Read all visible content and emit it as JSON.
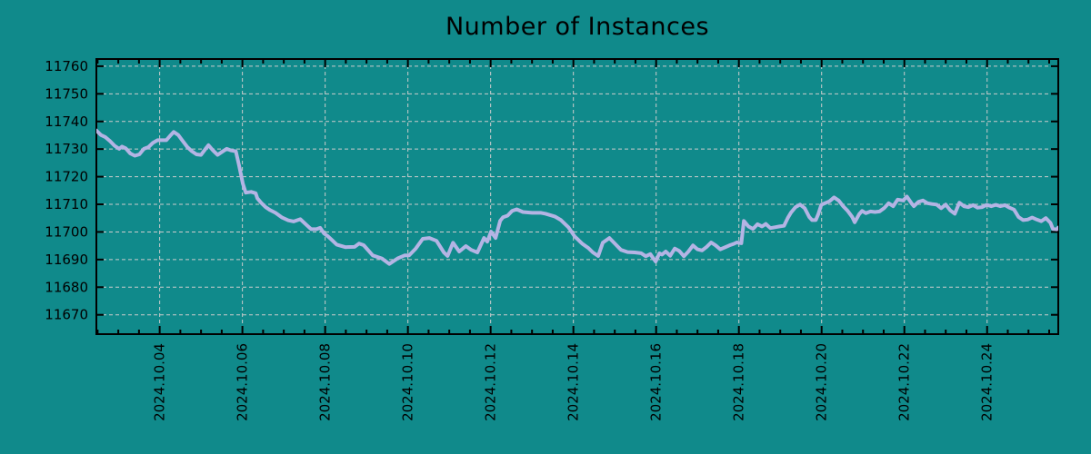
{
  "page": {
    "background_color": "#108a8b",
    "accent_line_color": "#b4b4e4",
    "grid_color": "#cccccc",
    "axis_color": "#000000",
    "text_color": "#000000"
  },
  "chart_data": {
    "type": "line",
    "title": "Number of Instances",
    "xlabel": "",
    "ylabel": "",
    "legend_position": "none",
    "grid": {
      "show": true,
      "style": "dashed"
    },
    "y_axis": {
      "range": [
        11663,
        11762.6
      ],
      "tick_values": [
        11670,
        11680,
        11690,
        11700,
        11710,
        11720,
        11730,
        11740,
        11750,
        11760
      ],
      "tick_labels": [
        "11670",
        "11680",
        "11690",
        "11700",
        "11710",
        "11720",
        "11730",
        "11740",
        "11750",
        "11760"
      ]
    },
    "x_axis": {
      "range_days": [
        2.47,
        25.72
      ],
      "tick_days": [
        4,
        6,
        8,
        10,
        12,
        14,
        16,
        18,
        20,
        22,
        24
      ],
      "tick_labels": [
        "2024.10.04",
        "2024.10.06",
        "2024.10.08",
        "2024.10.10",
        "2024.10.12",
        "2024.10.14",
        "2024.10.16",
        "2024.10.18",
        "2024.10.20",
        "2024.10.22",
        "2024.10.24"
      ],
      "minor_tick_step_days": 0.5,
      "label_rotation_deg": -90
    },
    "series": [
      {
        "name": "instances",
        "color": "#b4b4e4",
        "points": [
          [
            2.47,
            11736.7
          ],
          [
            2.58,
            11735.1
          ],
          [
            2.69,
            11734.3
          ],
          [
            2.8,
            11732.9
          ],
          [
            2.91,
            11731.2
          ],
          [
            3.02,
            11730.1
          ],
          [
            3.09,
            11730.9
          ],
          [
            3.18,
            11730.3
          ],
          [
            3.29,
            11728.4
          ],
          [
            3.4,
            11727.6
          ],
          [
            3.51,
            11728.1
          ],
          [
            3.62,
            11730.1
          ],
          [
            3.73,
            11730.7
          ],
          [
            3.84,
            11732.3
          ],
          [
            3.95,
            11733.2
          ],
          [
            4.16,
            11733.2
          ],
          [
            4.27,
            11735.1
          ],
          [
            4.34,
            11736.2
          ],
          [
            4.45,
            11735.1
          ],
          [
            4.56,
            11732.9
          ],
          [
            4.67,
            11730.7
          ],
          [
            4.78,
            11729.2
          ],
          [
            4.89,
            11728.1
          ],
          [
            5.0,
            11727.9
          ],
          [
            5.11,
            11730.1
          ],
          [
            5.18,
            11731.4
          ],
          [
            5.29,
            11729.5
          ],
          [
            5.4,
            11727.9
          ],
          [
            5.51,
            11729.0
          ],
          [
            5.62,
            11730.1
          ],
          [
            5.73,
            11729.5
          ],
          [
            5.84,
            11729.2
          ],
          [
            5.92,
            11724.0
          ],
          [
            6.01,
            11717.5
          ],
          [
            6.08,
            11714.2
          ],
          [
            6.21,
            11714.5
          ],
          [
            6.32,
            11714.0
          ],
          [
            6.36,
            11712.2
          ],
          [
            6.45,
            11710.6
          ],
          [
            6.56,
            11709.0
          ],
          [
            6.67,
            11707.9
          ],
          [
            6.8,
            11706.9
          ],
          [
            6.96,
            11705.2
          ],
          [
            7.11,
            11704.2
          ],
          [
            7.24,
            11703.8
          ],
          [
            7.4,
            11704.6
          ],
          [
            7.55,
            11702.5
          ],
          [
            7.66,
            11701.0
          ],
          [
            7.79,
            11701.0
          ],
          [
            7.88,
            11701.5
          ],
          [
            7.97,
            11699.5
          ],
          [
            8.06,
            11698.5
          ],
          [
            8.17,
            11697.0
          ],
          [
            8.28,
            11695.4
          ],
          [
            8.49,
            11694.5
          ],
          [
            8.71,
            11694.6
          ],
          [
            8.82,
            11695.8
          ],
          [
            8.93,
            11695.2
          ],
          [
            9.15,
            11691.5
          ],
          [
            9.37,
            11690.4
          ],
          [
            9.55,
            11688.4
          ],
          [
            9.75,
            11690.4
          ],
          [
            9.92,
            11691.5
          ],
          [
            10.03,
            11691.5
          ],
          [
            10.19,
            11694.0
          ],
          [
            10.36,
            11697.5
          ],
          [
            10.52,
            11697.8
          ],
          [
            10.69,
            11696.8
          ],
          [
            10.87,
            11692.6
          ],
          [
            10.96,
            11691.3
          ],
          [
            11.09,
            11696.1
          ],
          [
            11.24,
            11692.9
          ],
          [
            11.4,
            11694.9
          ],
          [
            11.53,
            11693.5
          ],
          [
            11.68,
            11692.6
          ],
          [
            11.84,
            11697.8
          ],
          [
            11.92,
            11696.5
          ],
          [
            12.01,
            11700.1
          ],
          [
            12.12,
            11697.8
          ],
          [
            12.23,
            11704.0
          ],
          [
            12.3,
            11705.3
          ],
          [
            12.41,
            11705.9
          ],
          [
            12.52,
            11707.6
          ],
          [
            12.63,
            11708.2
          ],
          [
            12.78,
            11707.2
          ],
          [
            13.0,
            11706.9
          ],
          [
            13.22,
            11706.9
          ],
          [
            13.33,
            11706.6
          ],
          [
            13.55,
            11705.6
          ],
          [
            13.7,
            11704.3
          ],
          [
            13.88,
            11701.7
          ],
          [
            14.03,
            11698.4
          ],
          [
            14.21,
            11695.8
          ],
          [
            14.36,
            11694.2
          ],
          [
            14.47,
            11692.6
          ],
          [
            14.6,
            11691.3
          ],
          [
            14.71,
            11696.1
          ],
          [
            14.87,
            11697.8
          ],
          [
            15.02,
            11695.5
          ],
          [
            15.15,
            11693.5
          ],
          [
            15.31,
            11692.7
          ],
          [
            15.48,
            11692.6
          ],
          [
            15.64,
            11692.3
          ],
          [
            15.75,
            11691.2
          ],
          [
            15.86,
            11692.0
          ],
          [
            15.92,
            11690.7
          ],
          [
            15.99,
            11689.3
          ],
          [
            16.08,
            11692.3
          ],
          [
            16.14,
            11691.8
          ],
          [
            16.23,
            11692.9
          ],
          [
            16.34,
            11691.4
          ],
          [
            16.45,
            11694.0
          ],
          [
            16.56,
            11693.1
          ],
          [
            16.67,
            11691.2
          ],
          [
            16.78,
            11692.9
          ],
          [
            16.89,
            11695.1
          ],
          [
            17.0,
            11693.7
          ],
          [
            17.11,
            11693.3
          ],
          [
            17.22,
            11694.6
          ],
          [
            17.33,
            11696.2
          ],
          [
            17.44,
            11695.1
          ],
          [
            17.55,
            11693.7
          ],
          [
            17.66,
            11694.4
          ],
          [
            17.77,
            11695.1
          ],
          [
            17.88,
            11695.7
          ],
          [
            17.95,
            11696.2
          ],
          [
            18.06,
            11695.9
          ],
          [
            18.12,
            11704.0
          ],
          [
            18.23,
            11702.0
          ],
          [
            18.34,
            11701.1
          ],
          [
            18.45,
            11702.8
          ],
          [
            18.56,
            11702.0
          ],
          [
            18.65,
            11702.9
          ],
          [
            18.76,
            11701.4
          ],
          [
            18.87,
            11701.7
          ],
          [
            18.98,
            11702.0
          ],
          [
            19.09,
            11702.2
          ],
          [
            19.18,
            11705.0
          ],
          [
            19.26,
            11707.0
          ],
          [
            19.37,
            11709.0
          ],
          [
            19.48,
            11709.9
          ],
          [
            19.59,
            11708.6
          ],
          [
            19.7,
            11705.4
          ],
          [
            19.77,
            11704.3
          ],
          [
            19.86,
            11704.3
          ],
          [
            19.92,
            11706.5
          ],
          [
            19.99,
            11709.8
          ],
          [
            20.08,
            11710.4
          ],
          [
            20.19,
            11711.1
          ],
          [
            20.3,
            11712.5
          ],
          [
            20.41,
            11711.4
          ],
          [
            20.52,
            11709.3
          ],
          [
            20.63,
            11707.6
          ],
          [
            20.74,
            11705.4
          ],
          [
            20.8,
            11703.5
          ],
          [
            20.91,
            11706.5
          ],
          [
            20.98,
            11707.6
          ],
          [
            21.07,
            11706.8
          ],
          [
            21.18,
            11707.4
          ],
          [
            21.29,
            11707.2
          ],
          [
            21.4,
            11707.4
          ],
          [
            21.51,
            11708.6
          ],
          [
            21.62,
            11710.4
          ],
          [
            21.73,
            11709.3
          ],
          [
            21.84,
            11711.7
          ],
          [
            21.97,
            11711.4
          ],
          [
            22.06,
            11712.8
          ],
          [
            22.17,
            11710.4
          ],
          [
            22.23,
            11709.3
          ],
          [
            22.34,
            11710.9
          ],
          [
            22.45,
            11711.4
          ],
          [
            22.56,
            11710.4
          ],
          [
            22.67,
            11710.1
          ],
          [
            22.78,
            11709.9
          ],
          [
            22.89,
            11708.6
          ],
          [
            23.0,
            11709.9
          ],
          [
            23.11,
            11707.8
          ],
          [
            23.22,
            11706.6
          ],
          [
            23.33,
            11710.6
          ],
          [
            23.44,
            11709.3
          ],
          [
            23.55,
            11709.0
          ],
          [
            23.66,
            11709.7
          ],
          [
            23.77,
            11708.8
          ],
          [
            23.88,
            11709.0
          ],
          [
            23.99,
            11709.8
          ],
          [
            24.1,
            11709.3
          ],
          [
            24.21,
            11709.8
          ],
          [
            24.32,
            11709.3
          ],
          [
            24.43,
            11709.7
          ],
          [
            24.54,
            11708.8
          ],
          [
            24.65,
            11708.1
          ],
          [
            24.76,
            11705.4
          ],
          [
            24.87,
            11704.3
          ],
          [
            24.98,
            11704.5
          ],
          [
            25.09,
            11705.2
          ],
          [
            25.2,
            11704.5
          ],
          [
            25.31,
            11703.9
          ],
          [
            25.42,
            11705.0
          ],
          [
            25.53,
            11703.3
          ],
          [
            25.59,
            11701.1
          ],
          [
            25.68,
            11700.9
          ],
          [
            25.72,
            11701.6
          ]
        ]
      }
    ]
  }
}
